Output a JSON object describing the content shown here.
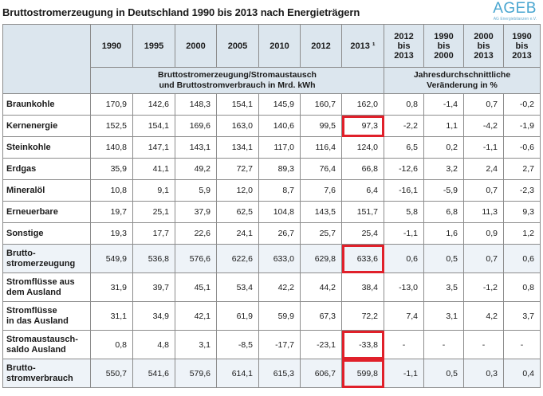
{
  "title": "Bruttostromerzeugung in Deutschland 1990 bis 2013 nach Energieträgern",
  "logo": {
    "text": "AGEB",
    "subtext": "AG Energiebilanzen e.V."
  },
  "columns": {
    "abs": [
      "1990",
      "1995",
      "2000",
      "2005",
      "2010",
      "2012",
      "2013 ¹"
    ],
    "chg": [
      {
        "l1": "2012",
        "l2": "bis",
        "l3": "2013"
      },
      {
        "l1": "1990",
        "l2": "bis",
        "l3": "2000"
      },
      {
        "l1": "2000",
        "l2": "bis",
        "l3": "2013"
      },
      {
        "l1": "1990",
        "l2": "bis",
        "l3": "2013"
      }
    ]
  },
  "subheaders": {
    "abs_l1": "Bruttostromerzeugung/Stromaustausch",
    "abs_l2": "und Bruttostromverbrauch in Mrd. kWh",
    "chg_l1": "Jahresdurchschnittliche",
    "chg_l2": "Veränderung in %"
  },
  "rows": [
    {
      "l1": "Braunkohle",
      "l2": "",
      "abs": [
        "170,9",
        "142,6",
        "148,3",
        "154,1",
        "145,9",
        "160,7",
        "162,0"
      ],
      "chg": [
        "0,8",
        "-1,4",
        "0,7",
        "-0,2"
      ]
    },
    {
      "l1": "Kernenergie",
      "l2": "",
      "abs": [
        "152,5",
        "154,1",
        "169,6",
        "163,0",
        "140,6",
        "99,5",
        "97,3"
      ],
      "chg": [
        "-2,2",
        "1,1",
        "-4,2",
        "-1,9"
      ]
    },
    {
      "l1": "Steinkohle",
      "l2": "",
      "abs": [
        "140,8",
        "147,1",
        "143,1",
        "134,1",
        "117,0",
        "116,4",
        "124,0"
      ],
      "chg": [
        "6,5",
        "0,2",
        "-1,1",
        "-0,6"
      ]
    },
    {
      "l1": "Erdgas",
      "l2": "",
      "abs": [
        "35,9",
        "41,1",
        "49,2",
        "72,7",
        "89,3",
        "76,4",
        "66,8"
      ],
      "chg": [
        "-12,6",
        "3,2",
        "2,4",
        "2,7"
      ]
    },
    {
      "l1": "Mineralöl",
      "l2": "",
      "abs": [
        "10,8",
        "9,1",
        "5,9",
        "12,0",
        "8,7",
        "7,6",
        "6,4"
      ],
      "chg": [
        "-16,1",
        "-5,9",
        "0,7",
        "-2,3"
      ]
    },
    {
      "l1": "Erneuerbare",
      "l2": "",
      "abs": [
        "19,7",
        "25,1",
        "37,9",
        "62,5",
        "104,8",
        "143,5",
        "151,7"
      ],
      "chg": [
        "5,8",
        "6,8",
        "11,3",
        "9,3"
      ]
    },
    {
      "l1": "Sonstige",
      "l2": "",
      "abs": [
        "19,3",
        "17,7",
        "22,6",
        "24,1",
        "26,7",
        "25,7",
        "25,4"
      ],
      "chg": [
        "-1,1",
        "1,6",
        "0,9",
        "1,2"
      ]
    },
    {
      "l1": "Brutto-",
      "l2": "stromerzeugung",
      "abs": [
        "549,9",
        "536,8",
        "576,6",
        "622,6",
        "633,0",
        "629,8",
        "633,6"
      ],
      "chg": [
        "0,6",
        "0,5",
        "0,7",
        "0,6"
      ]
    },
    {
      "l1": "Stromflüsse aus",
      "l2": "dem Ausland",
      "abs": [
        "31,9",
        "39,7",
        "45,1",
        "53,4",
        "42,2",
        "44,2",
        "38,4"
      ],
      "chg": [
        "-13,0",
        "3,5",
        "-1,2",
        "0,8"
      ]
    },
    {
      "l1": "Stromflüsse",
      "l2": "in das Ausland",
      "abs": [
        "31,1",
        "34,9",
        "42,1",
        "61,9",
        "59,9",
        "67,3",
        "72,2"
      ],
      "chg": [
        "7,4",
        "3,1",
        "4,2",
        "3,7"
      ]
    },
    {
      "l1": "Stromaustausch-",
      "l2": "saldo Ausland",
      "abs": [
        "0,8",
        "4,8",
        "3,1",
        "-8,5",
        "-17,7",
        "-23,1",
        "-33,8"
      ],
      "chg": [
        "-",
        "-",
        "-",
        "-"
      ]
    },
    {
      "l1": "Brutto-",
      "l2": "stromverbrauch",
      "abs": [
        "550,7",
        "541,6",
        "579,6",
        "614,1",
        "615,3",
        "606,7",
        "599,8"
      ],
      "chg": [
        "-1,1",
        "0,5",
        "0,3",
        "0,4"
      ]
    }
  ],
  "highlight_color": "#e0202a"
}
